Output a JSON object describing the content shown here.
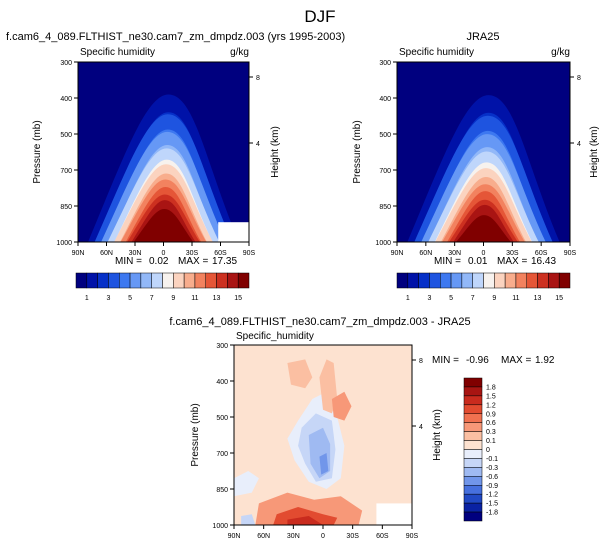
{
  "page_title": "DJF",
  "chart_data": [
    {
      "type": "heatmap",
      "id": "model",
      "title": "f.cam6_4_089.FLTHIST_ne30.cam7_zm_dmpdz.003 (yrs 1995-2003)",
      "variable": "Specific humidity",
      "units": "g/kg",
      "ylabel": "Pressure (mb)",
      "ylabel_right": "Height (km)",
      "x_ticks": [
        "90N",
        "60N",
        "30N",
        "0",
        "30S",
        "60S",
        "90S"
      ],
      "y_ticks": [
        "300",
        "400",
        "500",
        "700",
        "850",
        "1000"
      ],
      "height_ticks": [
        "8",
        "4"
      ],
      "stats": {
        "min_label": "MIN =",
        "min": "0.02",
        "max_label": "MAX =",
        "max": "17.35"
      },
      "peak": 17.35
    },
    {
      "type": "heatmap",
      "id": "obs",
      "title": "JRA25",
      "variable": "Specific humidity",
      "units": "g/kg",
      "ylabel": "Pressure (mb)",
      "ylabel_right": "Height (km)",
      "x_ticks": [
        "90N",
        "60N",
        "30N",
        "0",
        "30S",
        "60S",
        "90S"
      ],
      "y_ticks": [
        "300",
        "400",
        "500",
        "700",
        "850",
        "1000"
      ],
      "height_ticks": [
        "8",
        "4"
      ],
      "stats": {
        "min_label": "MIN =",
        "min": "0.01",
        "max_label": "MAX =",
        "max": "16.43"
      },
      "peak": 16.43
    },
    {
      "type": "heatmap",
      "id": "diff",
      "title": "f.cam6_4_089.FLTHIST_ne30.cam7_zm_dmpdz.003 - JRA25",
      "variable": "Specific_humidity",
      "ylabel": "Pressure (mb)",
      "ylabel_right": "Height (km)",
      "x_ticks": [
        "90N",
        "60N",
        "30N",
        "0",
        "30S",
        "60S",
        "90S"
      ],
      "y_ticks": [
        "300",
        "400",
        "500",
        "700",
        "850",
        "1000"
      ],
      "height_ticks": [
        "8",
        "4"
      ],
      "stats": {
        "min_label": "MIN =",
        "min": "-0.96",
        "max_label": "MAX =",
        "max": "1.92"
      }
    }
  ],
  "colorbar_abs": {
    "labels": [
      "1",
      "3",
      "5",
      "7",
      "9",
      "11",
      "13",
      "15"
    ],
    "colors": [
      "#00007f",
      "#0012a8",
      "#0630c8",
      "#1e54e0",
      "#3d78f0",
      "#6698f5",
      "#92b8f8",
      "#bfd6fb",
      "#f7f2ee",
      "#fbd3bf",
      "#f8ad8d",
      "#f2825f",
      "#e55637",
      "#cc3020",
      "#a91413",
      "#800000"
    ]
  },
  "colorbar_diff": {
    "labels": [
      "1.8",
      "1.5",
      "1.2",
      "0.9",
      "0.6",
      "0.3",
      "0.1",
      "0",
      "-0.1",
      "-0.3",
      "-0.6",
      "-0.9",
      "-1.2",
      "-1.5",
      "-1.8"
    ],
    "colors": [
      "#800000",
      "#a81512",
      "#c92b1e",
      "#e24b30",
      "#f07150",
      "#f79878",
      "#fbbfa2",
      "#fde2d0",
      "#e8eefb",
      "#c6d6f7",
      "#9fbaf2",
      "#7196ea",
      "#4670de",
      "#2149c4",
      "#0a22a3",
      "#00007f"
    ]
  }
}
